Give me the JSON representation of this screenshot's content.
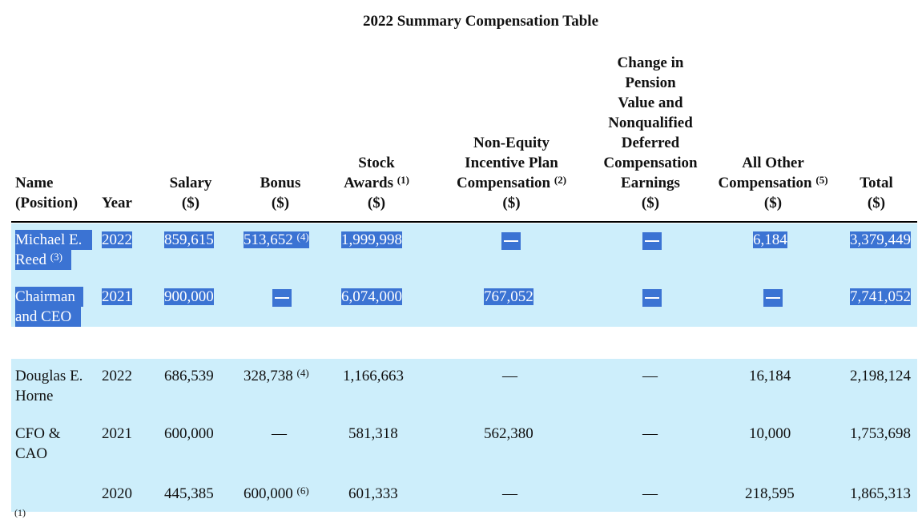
{
  "table_title": "2022 Summary Compensation Table",
  "headers": {
    "name": "Name\n(Position)",
    "year": "Year",
    "salary": "Salary\n($)",
    "bonus": "Bonus\n($)",
    "stock": "Stock\nAwards",
    "stock_note": "(1)",
    "stock_unit": "($)",
    "nonequity": "Non-Equity\nIncentive Plan\nCompensation",
    "nonequity_note": "(2)",
    "nonequity_unit": "($)",
    "pension": "Change in\nPension\nValue and\nNonqualified\nDeferred\nCompensation\nEarnings\n($)",
    "other": "All Other\nCompensation",
    "other_note": "(5)",
    "other_unit": "($)",
    "total": "Total\n($)"
  },
  "rows": [
    {
      "name1": "Michael E.",
      "name2": "Reed",
      "name_note": "(3)",
      "year": "2022",
      "salary": "859,615",
      "bonus": "513,652",
      "bonus_note": "(4)",
      "stock": "1,999,998",
      "nonequity": "—",
      "pension": "—",
      "other": "6,184",
      "total": "3,379,449"
    },
    {
      "name1": "Chairman",
      "name2": "and CEO",
      "year": "2021",
      "salary": "900,000",
      "bonus": "—",
      "stock": "6,074,000",
      "nonequity": "767,052",
      "pension": "—",
      "other": "—",
      "total": "7,741,052"
    },
    {
      "name1": "Douglas E.",
      "name2": "Horne",
      "year": "2022",
      "salary": "686,539",
      "bonus": "328,738",
      "bonus_note": "(4)",
      "stock": "1,166,663",
      "nonequity": "—",
      "pension": "—",
      "other": "16,184",
      "total": "2,198,124"
    },
    {
      "name1": "CFO &",
      "name2": "CAO",
      "year": "2021",
      "salary": "600,000",
      "bonus": "—",
      "stock": "581,318",
      "nonequity": "562,380",
      "pension": "—",
      "other": "10,000",
      "total": "1,753,698"
    },
    {
      "name1": "",
      "name2": "",
      "year": "2020",
      "salary": "445,385",
      "bonus": "600,000",
      "bonus_note": "(6)",
      "stock": "601,333",
      "nonequity": "—",
      "pension": "—",
      "other": "218,595",
      "total": "1,865,313"
    }
  ],
  "footnote_cut": "(1)"
}
